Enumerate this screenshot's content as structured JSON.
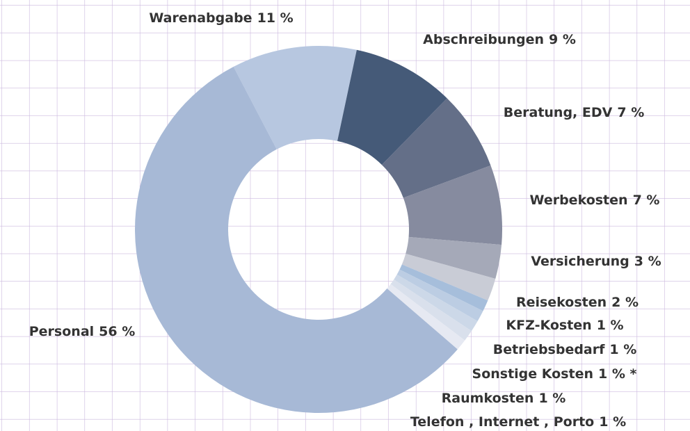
{
  "chart_data": {
    "type": "donut",
    "categories": [
      "Warenabgabe",
      "Abschreibungen",
      "Beratung, EDV",
      "Werbekosten",
      "Versicherung",
      "Reisekosten",
      "KFZ-Kosten",
      "Betriebsbedarf",
      "Sonstige Kosten",
      "Raumkosten",
      "Telefon , Internet , Porto",
      "Personal"
    ],
    "values": [
      11,
      9,
      7,
      7,
      3,
      2,
      1,
      1,
      1,
      1,
      1,
      56
    ],
    "value_labels": [
      "11 %",
      "9 %",
      "7 %",
      "7 %",
      "3 %",
      "2 %",
      "1 %",
      "1 %",
      "1 % *",
      "1 %",
      "1 %",
      "56 %"
    ],
    "colors": [
      "#b7c7e0",
      "#455a78",
      "#646f88",
      "#868b9f",
      "#a5a9b8",
      "#c9ccd6",
      "#a6bedb",
      "#bccde3",
      "#ccd8e8",
      "#d9e0ec",
      "#e6e9f2",
      "#a7b9d6"
    ]
  }
}
